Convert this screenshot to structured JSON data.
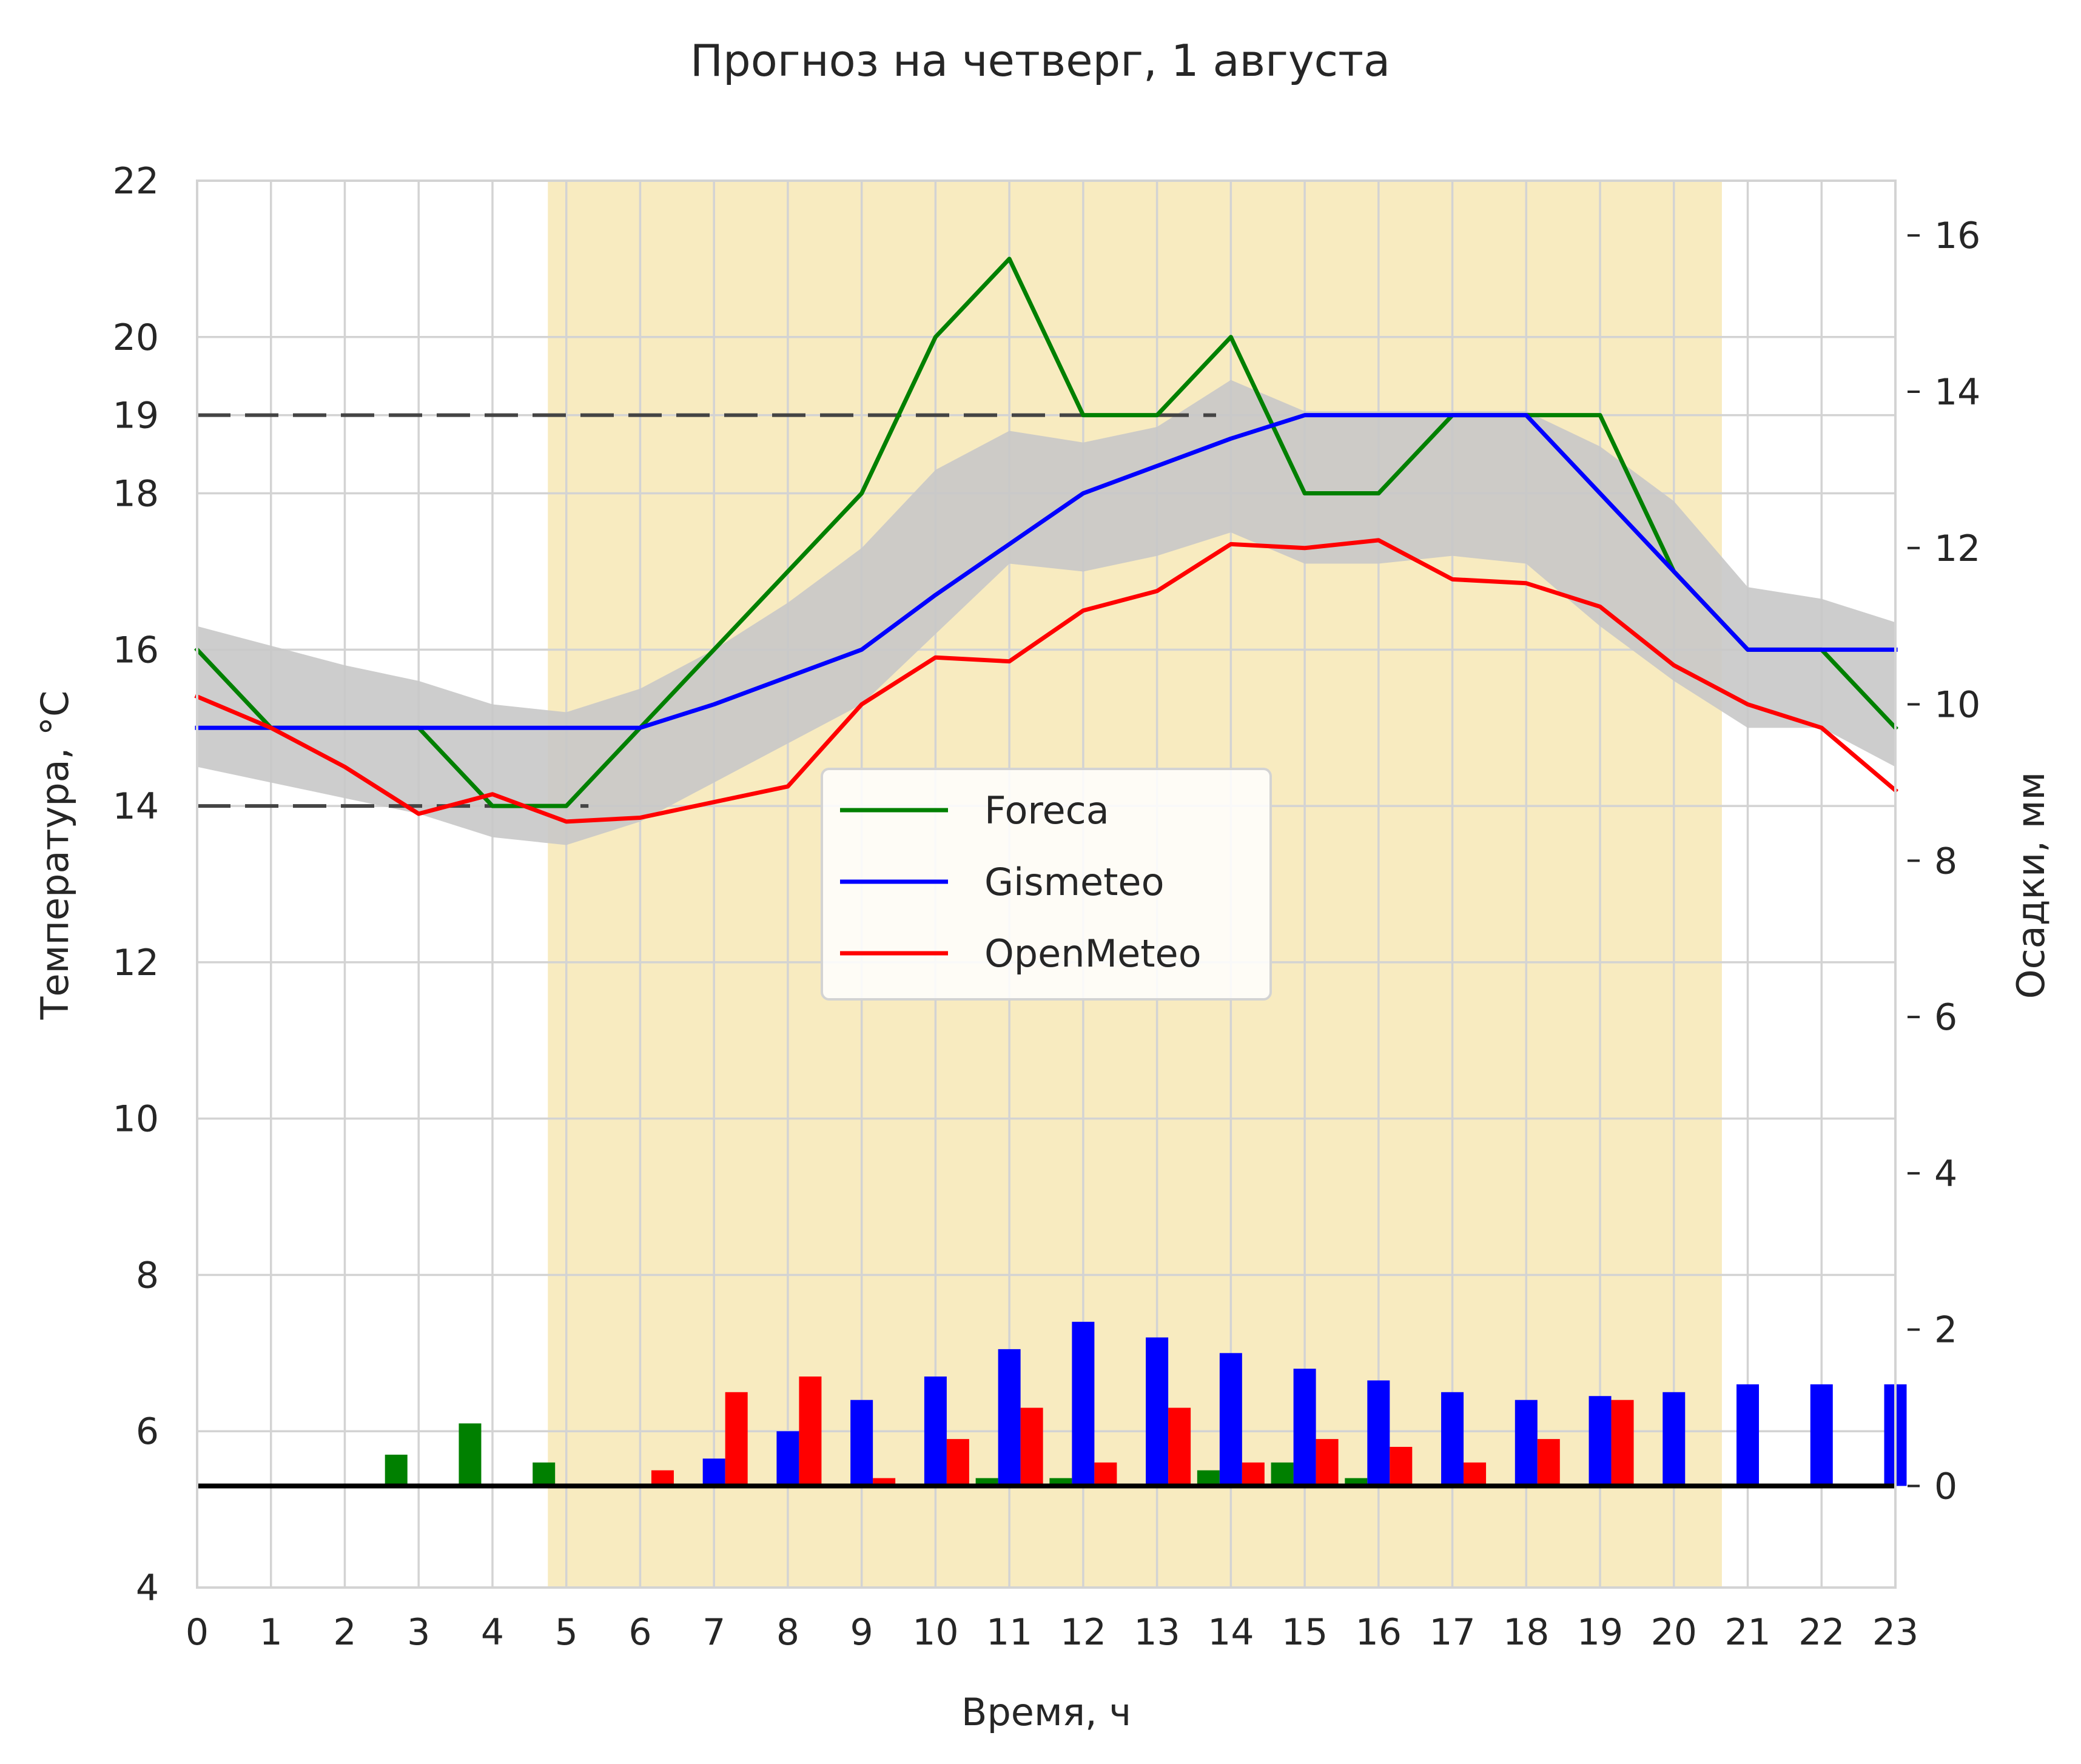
{
  "chart_data": {
    "type": "line",
    "title": "Прогноз на четверг,  1 августа",
    "xlabel": "Время, ч",
    "ylabel": "Температура, °C",
    "y2label": "Осадки, мм",
    "xlim": [
      0,
      23
    ],
    "ylim": [
      4,
      22
    ],
    "y2lim": [
      -1.3,
      16.7
    ],
    "x_ticks": [
      0,
      1,
      2,
      3,
      4,
      5,
      6,
      7,
      8,
      9,
      10,
      11,
      12,
      13,
      14,
      15,
      16,
      17,
      18,
      19,
      20,
      21,
      22,
      23
    ],
    "y_ticks": [
      4,
      6,
      8,
      10,
      12,
      14,
      16,
      18,
      19,
      20,
      22
    ],
    "y2_ticks": [
      0,
      2,
      4,
      6,
      8,
      10,
      12,
      14,
      16
    ],
    "grid": true,
    "legend_position": "center",
    "daylight_span": [
      4.75,
      20.65
    ],
    "reference_lines": [
      {
        "y": 19,
        "x_end": 13.8,
        "style": "dashed"
      },
      {
        "y": 14,
        "x_end": 5.3,
        "style": "dashed"
      }
    ],
    "precip_zero_line": 0,
    "temperature_series": [
      {
        "name": "Foreca",
        "color": "#008000",
        "x": [
          0,
          1,
          2,
          3,
          4,
          5,
          6,
          7,
          8,
          9,
          10,
          11,
          12,
          13,
          14,
          15,
          16,
          17,
          18,
          19,
          20,
          21,
          22,
          23
        ],
        "values": [
          16,
          15,
          15,
          15,
          14,
          14,
          15,
          16,
          17,
          18,
          20,
          21,
          19,
          19,
          20,
          18,
          18,
          19,
          19,
          19,
          17,
          16,
          16,
          15
        ]
      },
      {
        "name": "Gismeteo",
        "color": "#0000ff",
        "x": [
          0,
          1,
          2,
          3,
          4,
          5,
          6,
          7,
          8,
          9,
          10,
          11,
          12,
          13,
          14,
          15,
          16,
          17,
          18,
          19,
          20,
          21,
          22,
          23
        ],
        "values": [
          15,
          15,
          15,
          15,
          15,
          15,
          15,
          15.3,
          15.65,
          16,
          16.7,
          17.35,
          18,
          18.35,
          18.7,
          19,
          19,
          19,
          19,
          18,
          17,
          16,
          16,
          16
        ]
      },
      {
        "name": "OpenMeteo",
        "color": "#ff0000",
        "x": [
          0,
          1,
          2,
          3,
          4,
          5,
          6,
          7,
          8,
          9,
          10,
          11,
          12,
          13,
          14,
          15,
          16,
          17,
          18,
          19,
          20,
          21,
          22,
          23
        ],
        "values": [
          15.4,
          15,
          14.5,
          13.9,
          14.15,
          13.8,
          13.85,
          14.05,
          14.25,
          15.3,
          15.9,
          15.85,
          16.5,
          16.75,
          17.35,
          17.3,
          17.4,
          16.9,
          16.85,
          16.55,
          15.8,
          15.3,
          15,
          14.2
        ]
      }
    ],
    "band": {
      "color": "#c8c8c8",
      "x": [
        0,
        1,
        2,
        3,
        4,
        5,
        6,
        7,
        8,
        9,
        10,
        11,
        12,
        13,
        14,
        15,
        16,
        17,
        18,
        19,
        20,
        21,
        22,
        23
      ],
      "lower": [
        14.5,
        14.3,
        14.1,
        13.9,
        13.6,
        13.5,
        13.8,
        14.3,
        14.8,
        15.3,
        16.2,
        17.1,
        17,
        17.2,
        17.5,
        17.1,
        17.1,
        17.2,
        17.1,
        16.3,
        15.6,
        15,
        15,
        14.5
      ],
      "upper": [
        16.3,
        16.05,
        15.8,
        15.6,
        15.3,
        15.2,
        15.5,
        16,
        16.6,
        17.3,
        18.3,
        18.8,
        18.65,
        18.85,
        19.45,
        19.05,
        19.05,
        19.05,
        19.05,
        18.6,
        17.9,
        16.8,
        16.65,
        16.35
      ]
    },
    "precip_series": [
      {
        "name": "Foreca",
        "color": "#008000",
        "x": [
          0,
          1,
          2,
          3,
          4,
          5,
          6,
          7,
          8,
          9,
          10,
          11,
          12,
          13,
          14,
          15,
          16,
          17,
          18,
          19,
          20,
          21,
          22,
          23
        ],
        "values": [
          0,
          0,
          0,
          0.4,
          0.8,
          0.3,
          0,
          0,
          0,
          0,
          0,
          0.1,
          0.1,
          0,
          0.2,
          0.3,
          0.1,
          0,
          0,
          0,
          0,
          0,
          0,
          0
        ]
      },
      {
        "name": "Gismeteo",
        "color": "#0000ff",
        "x": [
          0,
          1,
          2,
          3,
          4,
          5,
          6,
          7,
          8,
          9,
          10,
          11,
          12,
          13,
          14,
          15,
          16,
          17,
          18,
          19,
          20,
          21,
          22,
          23
        ],
        "values": [
          0,
          0,
          0,
          0,
          0,
          0,
          0,
          0.35,
          0.7,
          1.1,
          1.4,
          1.75,
          2.1,
          1.9,
          1.7,
          1.5,
          1.35,
          1.2,
          1.1,
          1.15,
          1.2,
          1.3,
          1.3,
          1.3
        ]
      },
      {
        "name": "OpenMeteo",
        "color": "#ff0000",
        "x": [
          0,
          1,
          2,
          3,
          4,
          5,
          6,
          7,
          8,
          9,
          10,
          11,
          12,
          13,
          14,
          15,
          16,
          17,
          18,
          19,
          20,
          21,
          22,
          23
        ],
        "values": [
          0,
          0,
          0,
          0,
          0,
          0,
          0.2,
          1.2,
          1.4,
          0.1,
          0.6,
          1,
          0.3,
          1,
          0.3,
          0.6,
          0.5,
          0.3,
          0.6,
          1.1,
          0,
          0,
          0,
          0
        ]
      }
    ]
  }
}
